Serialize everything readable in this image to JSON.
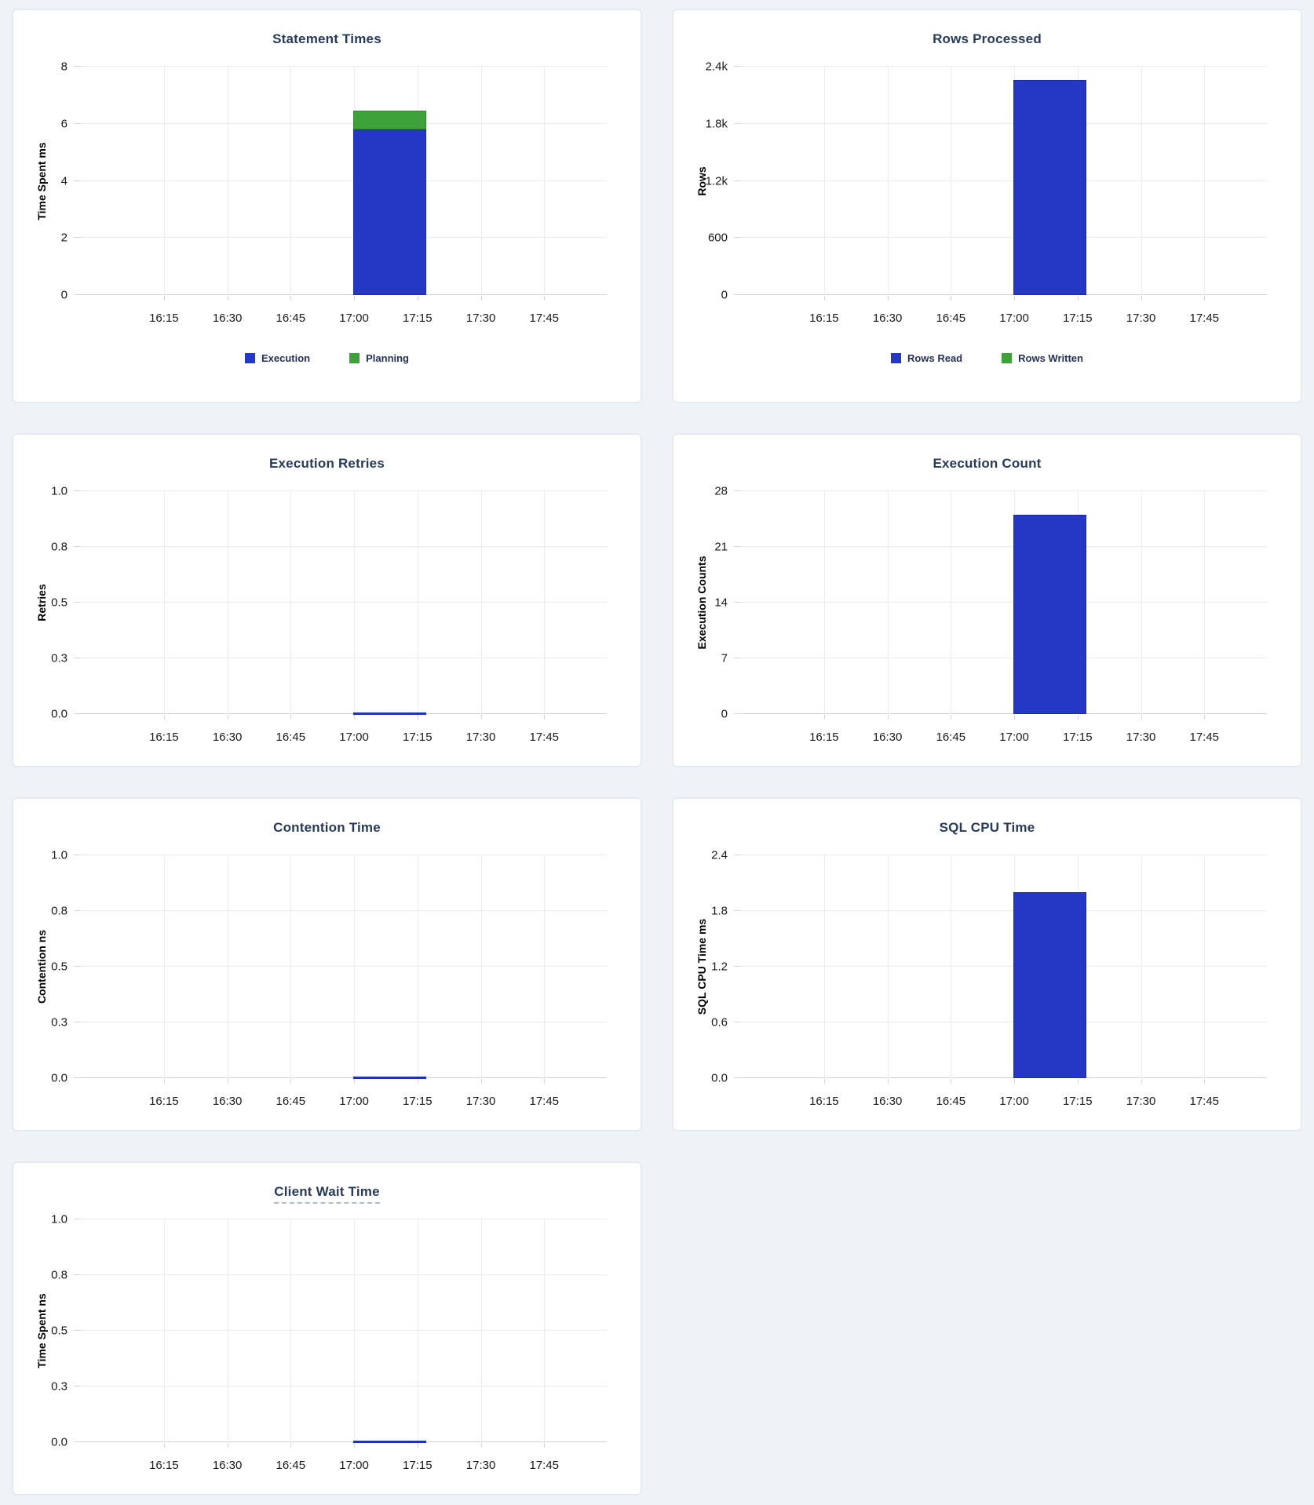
{
  "page": {
    "background_color": "#eff3f8",
    "card_background": "#ffffff",
    "title_color": "#253a5e"
  },
  "palette": {
    "bar_blue": "#2438c5",
    "bar_blue_border": "#1c2da4",
    "bar_green": "#3da23a",
    "bar_green_border": "#2e8a2d",
    "zero_line_blue": "#1f30ba"
  },
  "chart_data": [
    {
      "type": "bar",
      "title": "Statement Times",
      "ylabel": "Time Spent ms",
      "ymax": 8,
      "yticks": [
        "0",
        "2",
        "4",
        "6",
        "8"
      ],
      "xticks": [
        "16:15",
        "16:30",
        "16:45",
        "17:00",
        "17:15",
        "17:30",
        "17:45"
      ],
      "bar_window": {
        "start": "17:00",
        "end": "17:15"
      },
      "series": [
        {
          "name": "Execution",
          "color": "bar_blue",
          "value": 5.8
        },
        {
          "name": "Planning",
          "color": "bar_green",
          "value": 0.65
        }
      ],
      "legend": true,
      "title_tooltip_underline": false
    },
    {
      "type": "bar",
      "title": "Rows Processed",
      "ylabel": "Rows",
      "ymax": 2400,
      "yticks": [
        "0",
        "600",
        "1.2k",
        "1.8k",
        "2.4k"
      ],
      "xticks": [
        "16:15",
        "16:30",
        "16:45",
        "17:00",
        "17:15",
        "17:30",
        "17:45"
      ],
      "bar_window": {
        "start": "17:00",
        "end": "17:15"
      },
      "series": [
        {
          "name": "Rows Read",
          "color": "bar_blue",
          "value": 2260
        },
        {
          "name": "Rows Written",
          "color": "bar_green",
          "value": 0
        }
      ],
      "legend": true,
      "title_tooltip_underline": false
    },
    {
      "type": "bar",
      "title": "Execution Retries",
      "ylabel": "Retries",
      "ymax": 1.0,
      "yticks": [
        "0.0",
        "0.3",
        "0.5",
        "0.8",
        "1.0"
      ],
      "xticks": [
        "16:15",
        "16:30",
        "16:45",
        "17:00",
        "17:15",
        "17:30",
        "17:45"
      ],
      "bar_window": {
        "start": "17:00",
        "end": "17:15"
      },
      "series": [
        {
          "name": "Retries",
          "color": "bar_blue",
          "value": 0
        }
      ],
      "legend": false,
      "title_tooltip_underline": false
    },
    {
      "type": "bar",
      "title": "Execution Count",
      "ylabel": "Execution Counts",
      "ymax": 28,
      "yticks": [
        "0",
        "7",
        "14",
        "21",
        "28"
      ],
      "xticks": [
        "16:15",
        "16:30",
        "16:45",
        "17:00",
        "17:15",
        "17:30",
        "17:45"
      ],
      "bar_window": {
        "start": "17:00",
        "end": "17:15"
      },
      "series": [
        {
          "name": "Execution Count",
          "color": "bar_blue",
          "value": 25
        }
      ],
      "legend": false,
      "title_tooltip_underline": false
    },
    {
      "type": "bar",
      "title": "Contention Time",
      "ylabel": "Contention ns",
      "ymax": 1.0,
      "yticks": [
        "0.0",
        "0.3",
        "0.5",
        "0.8",
        "1.0"
      ],
      "xticks": [
        "16:15",
        "16:30",
        "16:45",
        "17:00",
        "17:15",
        "17:30",
        "17:45"
      ],
      "bar_window": {
        "start": "17:00",
        "end": "17:15"
      },
      "series": [
        {
          "name": "Contention",
          "color": "bar_blue",
          "value": 0
        }
      ],
      "legend": false,
      "title_tooltip_underline": false
    },
    {
      "type": "bar",
      "title": "SQL CPU Time",
      "ylabel": "SQL CPU Time ms",
      "ymax": 2.4,
      "yticks": [
        "0.0",
        "0.6",
        "1.2",
        "1.8",
        "2.4"
      ],
      "xticks": [
        "16:15",
        "16:30",
        "16:45",
        "17:00",
        "17:15",
        "17:30",
        "17:45"
      ],
      "bar_window": {
        "start": "17:00",
        "end": "17:15"
      },
      "series": [
        {
          "name": "SQL CPU Time",
          "color": "bar_blue",
          "value": 2.0
        }
      ],
      "legend": false,
      "title_tooltip_underline": false
    },
    {
      "type": "bar",
      "title": "Client Wait Time",
      "ylabel": "Time Spent ns",
      "ymax": 1.0,
      "yticks": [
        "0.0",
        "0.3",
        "0.5",
        "0.8",
        "1.0"
      ],
      "xticks": [
        "16:15",
        "16:30",
        "16:45",
        "17:00",
        "17:15",
        "17:30",
        "17:45"
      ],
      "bar_window": {
        "start": "17:00",
        "end": "17:15"
      },
      "series": [
        {
          "name": "Client Wait",
          "color": "bar_blue",
          "value": 0
        }
      ],
      "legend": false,
      "title_tooltip_underline": true
    }
  ]
}
